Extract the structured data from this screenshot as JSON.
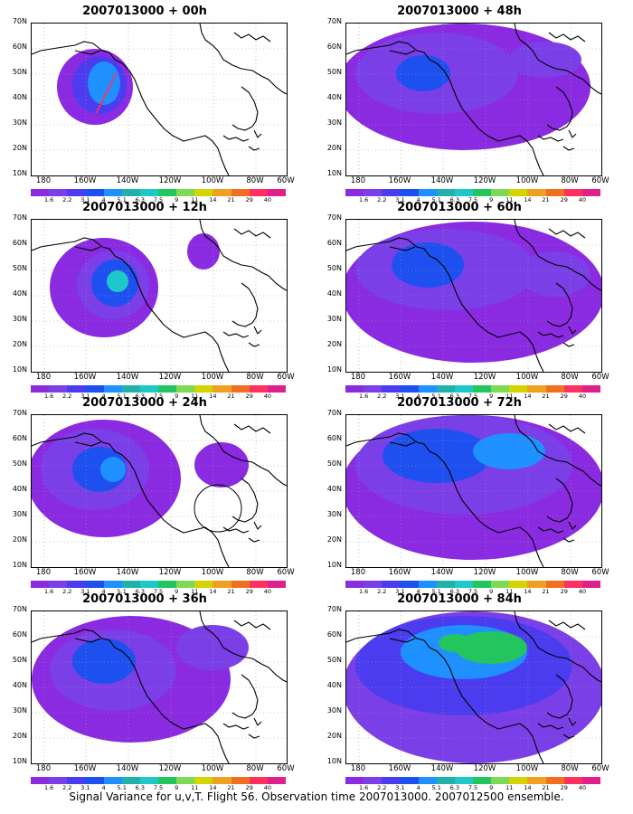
{
  "panels": [
    {
      "title": "2007013000 + 00h",
      "lead": "00h",
      "signal": "low"
    },
    {
      "title": "2007013000 + 12h",
      "lead": "12h",
      "signal": "low"
    },
    {
      "title": "2007013000 + 24h",
      "lead": "24h",
      "signal": "medium"
    },
    {
      "title": "2007013000 + 36h",
      "lead": "36h",
      "signal": "medium"
    },
    {
      "title": "2007013000 + 48h",
      "lead": "48h",
      "signal": "medium"
    },
    {
      "title": "2007013000 + 60h",
      "lead": "60h",
      "signal": "medium"
    },
    {
      "title": "2007013000 + 72h",
      "lead": "72h",
      "signal": "high"
    },
    {
      "title": "2007013000 + 84h",
      "lead": "84h",
      "signal": "high"
    }
  ],
  "lat_labels": [
    "70N",
    "60N",
    "50N",
    "40N",
    "30N",
    "20N",
    "10N"
  ],
  "lon_labels": [
    "180",
    "160W",
    "140W",
    "120W",
    "100W",
    "80W",
    "60W"
  ],
  "colorbar": {
    "labels": [
      "1.6",
      "2.2",
      "3.1",
      "4",
      "5.1",
      "6.3",
      "7.5",
      "9",
      "11",
      "14",
      "21",
      "29",
      "40"
    ],
    "colors": [
      "#8a2be2",
      "#7b3fe8",
      "#4b3cf0",
      "#1e50f0",
      "#1e90ff",
      "#20b2aa",
      "#1ec8c8",
      "#22c55e",
      "#7ed957",
      "#d4d400",
      "#f0a020",
      "#f07020",
      "#ff3060",
      "#e0208a"
    ]
  },
  "footer": "Signal Variance for u,v,T. Flight 56. Observation time 2007013000. 2007012500 ensemble."
}
